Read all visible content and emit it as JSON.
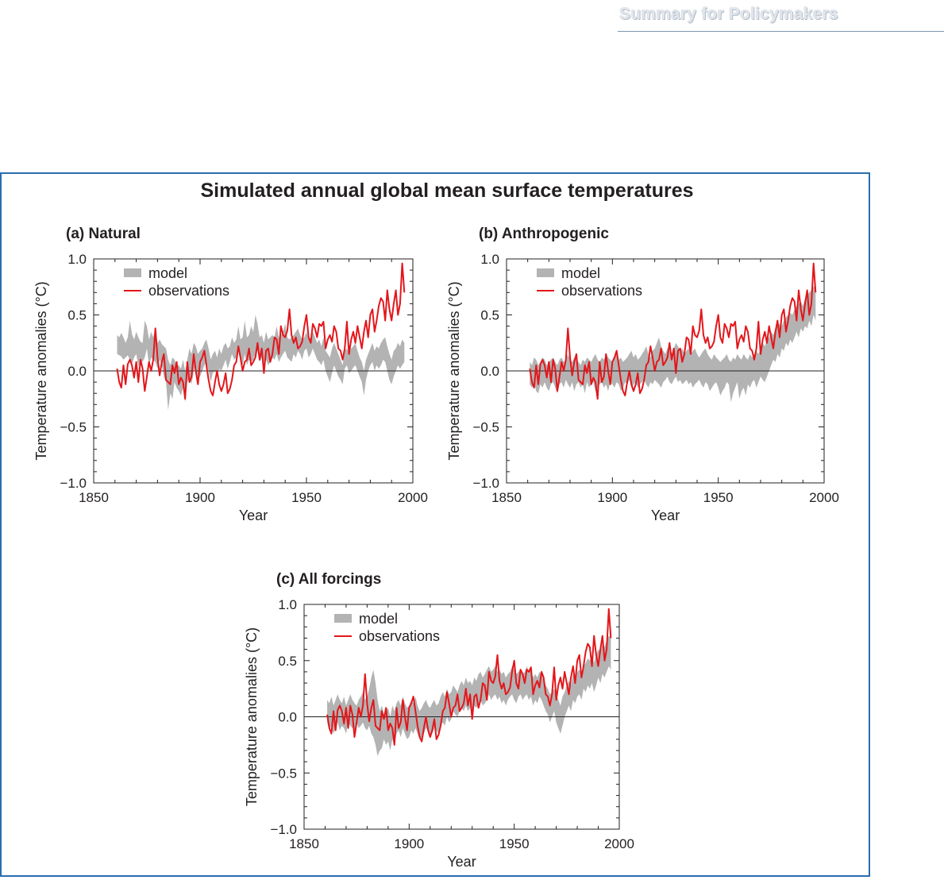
{
  "header": {
    "running_head": "Summary for Policymakers"
  },
  "figure": {
    "title": "Simulated annual global mean surface temperatures"
  },
  "colors": {
    "model_band": "#b3b3b3",
    "observations": "#e3161b",
    "frame": "#2a6db0"
  },
  "chart_data": [
    {
      "type": "area",
      "panel_label": "(a) Natural",
      "xlabel": "Year",
      "ylabel": "Temperature anomalies (°C)",
      "xlim": [
        1850,
        2000
      ],
      "ylim": [
        -1.0,
        1.0
      ],
      "xticks": [
        "1850",
        "1900",
        "1950",
        "2000"
      ],
      "yticks": [
        "−1.0",
        "−0.5",
        "0.0",
        "0.5",
        "1.0"
      ],
      "grid": false,
      "legend_position": "top-left",
      "legend": [
        "model",
        "observations"
      ],
      "x_start": 1861,
      "observations": [
        0.02,
        -0.1,
        -0.15,
        0.05,
        -0.12,
        0.06,
        0.1,
        0.05,
        -0.06,
        0.08,
        -0.1,
        0.1,
        0.02,
        -0.18,
        -0.05,
        0.08,
        0.0,
        0.1,
        0.38,
        0.12,
        -0.04,
        0.08,
        0.15,
        -0.08,
        -0.1,
        -0.12,
        0.05,
        -0.02,
        0.08,
        -0.12,
        -0.06,
        -0.1,
        -0.25,
        0.08,
        -0.1,
        -0.05,
        0.15,
        0.0,
        -0.12,
        0.08,
        0.12,
        0.18,
        0.05,
        -0.08,
        -0.18,
        -0.22,
        -0.1,
        0.0,
        -0.12,
        -0.18,
        -0.12,
        -0.02,
        -0.2,
        -0.16,
        -0.08,
        0.05,
        0.08,
        0.22,
        0.12,
        0.0,
        0.08,
        0.1,
        0.2,
        0.05,
        0.08,
        0.12,
        0.25,
        0.1,
        0.2,
        -0.02,
        0.18,
        0.2,
        0.08,
        0.15,
        0.3,
        0.28,
        0.15,
        0.4,
        0.32,
        0.3,
        0.36,
        0.55,
        0.32,
        0.25,
        0.3,
        0.2,
        0.22,
        0.26,
        0.4,
        0.5,
        0.3,
        0.25,
        0.42,
        0.38,
        0.3,
        0.42,
        0.4,
        0.44,
        0.2,
        0.28,
        0.32,
        0.26,
        0.4,
        0.35,
        0.2,
        0.18,
        0.1,
        0.2,
        0.44,
        0.15,
        0.28,
        0.35,
        0.25,
        0.4,
        0.3,
        0.2,
        0.35,
        0.45,
        0.3,
        0.5,
        0.55,
        0.35,
        0.45,
        0.58,
        0.65,
        0.62,
        0.45,
        0.72,
        0.55,
        0.45,
        0.6,
        0.72,
        0.5,
        0.6,
        0.96,
        0.7
      ],
      "model_band_lower": [
        0.15,
        0.14,
        0.13,
        0.1,
        0.12,
        0.14,
        0.1,
        0.06,
        0.12,
        0.15,
        0.04,
        0.1,
        0.08,
        0.12,
        0.2,
        0.05,
        0.12,
        0.1,
        0.08,
        0.02,
        0.1,
        0.05,
        -0.05,
        -0.1,
        -0.35,
        -0.2,
        -0.25,
        -0.1,
        -0.15,
        -0.18,
        -0.22,
        -0.15,
        -0.28,
        -0.1,
        -0.05,
        -0.12,
        0.0,
        0.05,
        -0.08,
        -0.05,
        0.0,
        0.05,
        0.08,
        0.0,
        -0.1,
        -0.02,
        0.0,
        -0.05,
        0.02,
        0.0,
        0.05,
        0.1,
        0.02,
        0.08,
        0.15,
        0.1,
        0.12,
        0.18,
        0.08,
        0.05,
        0.15,
        0.05,
        0.1,
        0.08,
        0.1,
        0.15,
        0.18,
        0.08,
        0.12,
        0.05,
        0.1,
        0.05,
        0.08,
        0.12,
        0.1,
        0.15,
        0.08,
        0.12,
        0.15,
        0.18,
        0.12,
        0.1,
        0.08,
        0.15,
        0.12,
        0.18,
        0.15,
        0.1,
        0.18,
        0.2,
        0.12,
        0.15,
        0.2,
        0.15,
        0.1,
        0.08,
        0.05,
        0.1,
        0.0,
        -0.05,
        -0.1,
        -0.02,
        0.05,
        0.0,
        -0.05,
        -0.08,
        -0.12,
        0.02,
        0.05,
        -0.02,
        0.0,
        0.03,
        0.05,
        0.0,
        -0.05,
        -0.1,
        -0.22,
        -0.08,
        0.0,
        0.05,
        0.08,
        0.0,
        0.05,
        0.02,
        0.05,
        0.1,
        0.08,
        0.0,
        -0.08,
        -0.12,
        -0.05,
        0.0,
        0.05,
        0.02,
        0.05,
        0.08,
        0.0
      ],
      "model_band_upper": [
        0.32,
        0.3,
        0.34,
        0.3,
        0.25,
        0.3,
        0.45,
        0.33,
        0.28,
        0.35,
        0.3,
        0.26,
        0.25,
        0.45,
        0.4,
        0.28,
        0.35,
        0.3,
        0.38,
        0.25,
        0.28,
        0.24,
        0.22,
        0.2,
        0.1,
        0.05,
        0.12,
        0.1,
        0.05,
        0.05,
        0.02,
        0.1,
        0.0,
        0.1,
        0.2,
        0.15,
        0.25,
        0.22,
        0.15,
        0.18,
        0.2,
        0.25,
        0.28,
        0.2,
        0.1,
        0.15,
        0.18,
        0.12,
        0.2,
        0.15,
        0.22,
        0.25,
        0.2,
        0.22,
        0.3,
        0.25,
        0.28,
        0.4,
        0.28,
        0.3,
        0.45,
        0.3,
        0.32,
        0.4,
        0.35,
        0.5,
        0.42,
        0.3,
        0.32,
        0.25,
        0.35,
        0.28,
        0.3,
        0.32,
        0.3,
        0.4,
        0.3,
        0.32,
        0.35,
        0.42,
        0.3,
        0.28,
        0.3,
        0.32,
        0.35,
        0.38,
        0.32,
        0.28,
        0.3,
        0.35,
        0.28,
        0.3,
        0.35,
        0.3,
        0.25,
        0.28,
        0.22,
        0.3,
        0.18,
        0.15,
        0.12,
        0.2,
        0.25,
        0.2,
        0.15,
        0.1,
        0.05,
        0.18,
        0.2,
        0.15,
        0.2,
        0.22,
        0.25,
        0.18,
        0.12,
        0.08,
        0.0,
        0.1,
        0.15,
        0.2,
        0.25,
        0.18,
        0.22,
        0.2,
        0.25,
        0.28,
        0.3,
        0.22,
        0.15,
        0.1,
        0.18,
        0.2,
        0.25,
        0.22,
        0.28,
        0.25,
        0.2
      ]
    },
    {
      "type": "area",
      "panel_label": "(b) Anthropogenic",
      "xlabel": "Year",
      "ylabel": "Temperature anomalies (°C)",
      "xlim": [
        1850,
        2000
      ],
      "ylim": [
        -1.0,
        1.0
      ],
      "xticks": [
        "1850",
        "1900",
        "1950",
        "2000"
      ],
      "yticks": [
        "−1.0",
        "−0.5",
        "0.0",
        "0.5",
        "1.0"
      ],
      "grid": false,
      "legend_position": "top-left",
      "legend": [
        "model",
        "observations"
      ],
      "x_start": 1861,
      "observations": [
        0.02,
        -0.1,
        -0.15,
        0.05,
        -0.12,
        0.06,
        0.1,
        0.05,
        -0.06,
        0.08,
        -0.1,
        0.1,
        0.02,
        -0.18,
        -0.05,
        0.08,
        0.0,
        0.1,
        0.38,
        0.12,
        -0.04,
        0.08,
        0.15,
        -0.08,
        -0.1,
        -0.12,
        0.05,
        -0.02,
        0.08,
        -0.12,
        -0.06,
        -0.1,
        -0.25,
        0.08,
        -0.1,
        -0.05,
        0.15,
        0.0,
        -0.12,
        0.08,
        0.12,
        0.18,
        0.05,
        -0.08,
        -0.18,
        -0.22,
        -0.1,
        0.0,
        -0.12,
        -0.18,
        -0.12,
        -0.02,
        -0.2,
        -0.16,
        -0.08,
        0.05,
        0.08,
        0.22,
        0.12,
        0.0,
        0.08,
        0.1,
        0.2,
        0.05,
        0.08,
        0.12,
        0.25,
        0.1,
        0.2,
        -0.02,
        0.18,
        0.2,
        0.08,
        0.15,
        0.3,
        0.28,
        0.15,
        0.4,
        0.32,
        0.3,
        0.36,
        0.55,
        0.32,
        0.25,
        0.3,
        0.2,
        0.22,
        0.26,
        0.4,
        0.5,
        0.3,
        0.25,
        0.42,
        0.38,
        0.3,
        0.42,
        0.4,
        0.44,
        0.2,
        0.28,
        0.32,
        0.26,
        0.4,
        0.35,
        0.2,
        0.18,
        0.1,
        0.2,
        0.44,
        0.15,
        0.28,
        0.35,
        0.25,
        0.4,
        0.3,
        0.2,
        0.35,
        0.45,
        0.3,
        0.5,
        0.55,
        0.35,
        0.45,
        0.58,
        0.65,
        0.62,
        0.45,
        0.72,
        0.55,
        0.45,
        0.6,
        0.72,
        0.5,
        0.6,
        0.96,
        0.7
      ],
      "model_band_lower": [
        -0.12,
        -0.15,
        -0.1,
        -0.18,
        -0.2,
        -0.12,
        -0.15,
        -0.1,
        -0.15,
        -0.18,
        -0.12,
        -0.1,
        -0.15,
        -0.2,
        -0.12,
        -0.1,
        -0.15,
        -0.08,
        -0.12,
        -0.15,
        -0.1,
        -0.18,
        -0.12,
        -0.1,
        -0.15,
        -0.12,
        -0.2,
        -0.1,
        -0.15,
        -0.12,
        -0.1,
        -0.18,
        -0.15,
        -0.12,
        -0.1,
        -0.15,
        -0.12,
        -0.18,
        -0.1,
        -0.12,
        -0.15,
        -0.1,
        -0.12,
        -0.18,
        -0.15,
        -0.1,
        -0.12,
        -0.08,
        -0.15,
        -0.12,
        -0.1,
        -0.15,
        -0.12,
        -0.1,
        -0.08,
        -0.12,
        -0.15,
        -0.1,
        -0.12,
        -0.08,
        -0.1,
        -0.12,
        -0.15,
        -0.1,
        -0.08,
        -0.05,
        -0.1,
        -0.12,
        -0.08,
        -0.05,
        -0.1,
        -0.08,
        -0.12,
        -0.1,
        -0.08,
        -0.12,
        -0.1,
        -0.15,
        -0.12,
        -0.1,
        -0.08,
        -0.12,
        -0.15,
        -0.1,
        -0.12,
        -0.18,
        -0.15,
        -0.12,
        -0.1,
        -0.15,
        -0.22,
        -0.18,
        -0.15,
        -0.1,
        -0.12,
        -0.28,
        -0.2,
        -0.15,
        -0.1,
        -0.25,
        -0.18,
        -0.15,
        -0.22,
        -0.12,
        -0.15,
        -0.1,
        -0.08,
        -0.15,
        -0.1,
        -0.05,
        -0.08,
        -0.1,
        -0.05,
        0.0,
        0.05,
        0.1,
        0.08,
        0.15,
        0.12,
        0.2,
        0.18,
        0.25,
        0.22,
        0.28,
        0.25,
        0.3,
        0.35,
        0.3,
        0.38,
        0.35,
        0.4,
        0.38,
        0.45,
        0.4,
        0.5,
        0.45,
        0.55
      ],
      "model_band_upper": [
        0.08,
        0.05,
        0.12,
        0.1,
        0.05,
        0.08,
        0.12,
        0.1,
        0.05,
        0.08,
        0.1,
        0.12,
        0.08,
        0.05,
        0.1,
        0.12,
        0.08,
        0.1,
        0.15,
        0.1,
        0.08,
        0.12,
        0.1,
        0.08,
        0.05,
        0.1,
        0.08,
        0.12,
        0.1,
        0.08,
        0.12,
        0.15,
        0.1,
        0.08,
        0.12,
        0.1,
        0.15,
        0.12,
        0.1,
        0.08,
        0.12,
        0.15,
        0.1,
        0.12,
        0.08,
        0.1,
        0.12,
        0.15,
        0.18,
        0.12,
        0.15,
        0.1,
        0.12,
        0.15,
        0.18,
        0.22,
        0.15,
        0.12,
        0.18,
        0.2,
        0.25,
        0.3,
        0.22,
        0.18,
        0.15,
        0.2,
        0.18,
        0.15,
        0.2,
        0.25,
        0.22,
        0.18,
        0.2,
        0.15,
        0.18,
        0.2,
        0.15,
        0.18,
        0.2,
        0.15,
        0.12,
        0.15,
        0.18,
        0.2,
        0.15,
        0.12,
        0.1,
        0.15,
        0.12,
        0.1,
        0.08,
        0.1,
        0.12,
        0.15,
        0.1,
        0.08,
        0.12,
        0.1,
        0.15,
        0.12,
        0.1,
        0.15,
        0.12,
        0.1,
        0.15,
        0.12,
        0.15,
        0.18,
        0.15,
        0.2,
        0.25,
        0.22,
        0.28,
        0.3,
        0.35,
        0.32,
        0.38,
        0.4,
        0.42,
        0.4,
        0.45,
        0.48,
        0.5,
        0.52,
        0.5,
        0.55,
        0.58,
        0.6,
        0.62,
        0.58,
        0.65,
        0.68,
        0.7,
        0.72,
        0.75,
        0.78,
        0.8
      ]
    },
    {
      "type": "area",
      "panel_label": "(c) All forcings",
      "xlabel": "Year",
      "ylabel": "Temperature anomalies (°C)",
      "xlim": [
        1850,
        2000
      ],
      "ylim": [
        -1.0,
        1.0
      ],
      "xticks": [
        "1850",
        "1900",
        "1950",
        "2000"
      ],
      "yticks": [
        "−1.0",
        "−0.5",
        "0.0",
        "0.5",
        "1.0"
      ],
      "grid": false,
      "legend_position": "top-left",
      "legend": [
        "model",
        "observations"
      ],
      "x_start": 1861,
      "observations": [
        0.02,
        -0.1,
        -0.15,
        0.05,
        -0.12,
        0.06,
        0.1,
        0.05,
        -0.06,
        0.08,
        -0.1,
        0.1,
        0.02,
        -0.18,
        -0.05,
        0.08,
        0.0,
        0.1,
        0.38,
        0.12,
        -0.04,
        0.08,
        0.15,
        -0.08,
        -0.1,
        -0.12,
        0.05,
        -0.02,
        0.08,
        -0.12,
        -0.06,
        -0.1,
        -0.25,
        0.08,
        -0.1,
        -0.05,
        0.15,
        0.0,
        -0.12,
        0.08,
        0.12,
        0.18,
        0.05,
        -0.08,
        -0.18,
        -0.22,
        -0.1,
        0.0,
        -0.12,
        -0.18,
        -0.12,
        -0.02,
        -0.2,
        -0.16,
        -0.08,
        0.05,
        0.08,
        0.22,
        0.12,
        0.0,
        0.08,
        0.1,
        0.2,
        0.05,
        0.08,
        0.12,
        0.25,
        0.1,
        0.2,
        -0.02,
        0.18,
        0.2,
        0.08,
        0.15,
        0.3,
        0.28,
        0.15,
        0.4,
        0.32,
        0.3,
        0.36,
        0.55,
        0.32,
        0.25,
        0.3,
        0.2,
        0.22,
        0.26,
        0.4,
        0.5,
        0.3,
        0.25,
        0.42,
        0.38,
        0.3,
        0.42,
        0.4,
        0.44,
        0.2,
        0.28,
        0.32,
        0.26,
        0.4,
        0.35,
        0.2,
        0.18,
        0.1,
        0.2,
        0.44,
        0.15,
        0.28,
        0.35,
        0.25,
        0.4,
        0.3,
        0.2,
        0.35,
        0.45,
        0.3,
        0.5,
        0.55,
        0.35,
        0.45,
        0.58,
        0.65,
        0.62,
        0.45,
        0.72,
        0.55,
        0.45,
        0.6,
        0.72,
        0.5,
        0.6,
        0.96,
        0.7
      ],
      "model_band_lower": [
        -0.05,
        -0.12,
        -0.08,
        -0.15,
        -0.1,
        -0.05,
        -0.12,
        -0.08,
        -0.1,
        -0.15,
        -0.05,
        -0.08,
        -0.1,
        -0.12,
        -0.05,
        -0.1,
        -0.08,
        -0.05,
        -0.1,
        -0.12,
        -0.08,
        -0.15,
        -0.18,
        -0.25,
        -0.35,
        -0.3,
        -0.28,
        -0.2,
        -0.25,
        -0.22,
        -0.3,
        -0.2,
        -0.25,
        -0.15,
        -0.12,
        -0.18,
        -0.1,
        -0.15,
        -0.2,
        -0.18,
        -0.12,
        -0.15,
        -0.1,
        -0.15,
        -0.2,
        -0.18,
        -0.15,
        -0.1,
        -0.12,
        -0.18,
        -0.15,
        -0.1,
        -0.12,
        -0.15,
        -0.08,
        -0.05,
        -0.08,
        0.0,
        -0.05,
        -0.02,
        0.05,
        0.02,
        0.0,
        0.05,
        0.08,
        0.05,
        0.1,
        0.05,
        0.08,
        0.02,
        0.1,
        0.08,
        0.12,
        0.15,
        0.1,
        0.12,
        0.15,
        0.2,
        0.15,
        0.18,
        0.2,
        0.15,
        0.18,
        0.12,
        0.15,
        0.1,
        0.15,
        0.18,
        0.2,
        0.15,
        0.12,
        0.18,
        0.2,
        0.15,
        0.18,
        0.2,
        0.15,
        0.18,
        0.1,
        0.15,
        0.12,
        0.18,
        0.15,
        0.1,
        0.05,
        0.02,
        -0.05,
        0.0,
        0.05,
        -0.05,
        -0.1,
        -0.15,
        -0.08,
        0.0,
        0.05,
        0.1,
        0.05,
        0.15,
        0.12,
        0.18,
        0.2,
        0.15,
        0.25,
        0.22,
        0.28,
        0.25,
        0.3,
        0.22,
        0.28,
        0.35,
        0.3,
        0.38,
        0.35,
        0.4,
        0.45,
        0.42,
        0.5
      ],
      "model_band_upper": [
        0.15,
        0.12,
        0.18,
        0.1,
        0.15,
        0.2,
        0.15,
        0.12,
        0.18,
        0.1,
        0.15,
        0.2,
        0.15,
        0.12,
        0.1,
        0.15,
        0.18,
        0.22,
        0.15,
        0.18,
        0.25,
        0.35,
        0.42,
        0.3,
        0.15,
        0.05,
        0.1,
        0.02,
        0.05,
        0.08,
        0.0,
        0.1,
        0.05,
        0.12,
        0.15,
        0.1,
        0.18,
        0.12,
        0.08,
        0.1,
        0.15,
        0.12,
        0.18,
        0.1,
        0.05,
        0.08,
        0.12,
        0.15,
        0.1,
        0.08,
        0.12,
        0.15,
        0.1,
        0.12,
        0.18,
        0.22,
        0.18,
        0.25,
        0.2,
        0.22,
        0.28,
        0.25,
        0.22,
        0.28,
        0.32,
        0.28,
        0.35,
        0.3,
        0.32,
        0.28,
        0.35,
        0.32,
        0.38,
        0.4,
        0.35,
        0.38,
        0.42,
        0.45,
        0.4,
        0.42,
        0.45,
        0.4,
        0.42,
        0.38,
        0.4,
        0.35,
        0.38,
        0.4,
        0.45,
        0.42,
        0.38,
        0.4,
        0.42,
        0.38,
        0.4,
        0.45,
        0.4,
        0.42,
        0.35,
        0.38,
        0.35,
        0.4,
        0.38,
        0.32,
        0.28,
        0.25,
        0.2,
        0.22,
        0.25,
        0.2,
        0.15,
        0.1,
        0.18,
        0.22,
        0.28,
        0.32,
        0.28,
        0.38,
        0.35,
        0.4,
        0.42,
        0.38,
        0.45,
        0.48,
        0.52,
        0.5,
        0.55,
        0.48,
        0.55,
        0.6,
        0.58,
        0.65,
        0.62,
        0.68,
        0.72,
        0.7,
        0.78
      ]
    }
  ]
}
